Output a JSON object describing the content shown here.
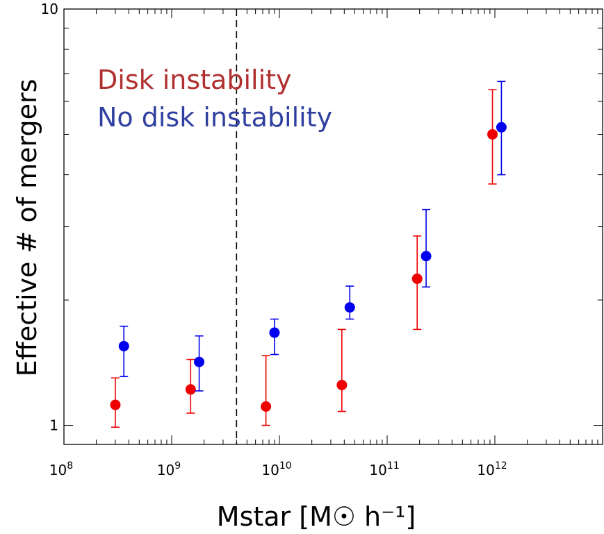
{
  "chart_data": {
    "type": "scatter",
    "xscale": "log",
    "yscale": "log",
    "xlim": [
      100000000,
      10000000000000
    ],
    "ylim": [
      0.9,
      10
    ],
    "xlabel": "Mstar [M☉ h⁻¹]",
    "ylabel": "Effective # of mergers",
    "x_ticks": [
      "10^8",
      "10^9",
      "10^10",
      "10^11",
      "10^12"
    ],
    "y_ticks": [
      "1",
      "10"
    ],
    "vline_x": 4000000000,
    "legend_position": "top-left",
    "series": [
      {
        "name": "Disk instability",
        "color": "#ee0000",
        "text_color": "#b03030",
        "points": [
          {
            "x": 300000000,
            "y": 1.12,
            "ylo": 0.99,
            "yhi": 1.3
          },
          {
            "x": 1500000000,
            "y": 1.22,
            "ylo": 1.07,
            "yhi": 1.44
          },
          {
            "x": 7500000000,
            "y": 1.11,
            "ylo": 1.0,
            "yhi": 1.47
          },
          {
            "x": 38000000000,
            "y": 1.25,
            "ylo": 1.08,
            "yhi": 1.7
          },
          {
            "x": 190000000000,
            "y": 2.25,
            "ylo": 1.7,
            "yhi": 2.85
          },
          {
            "x": 950000000000,
            "y": 5.0,
            "ylo": 3.8,
            "yhi": 6.4
          }
        ]
      },
      {
        "name": "No disk instability",
        "color": "#0000ee",
        "text_color": "#3040a0",
        "points": [
          {
            "x": 360000000,
            "y": 1.55,
            "ylo": 1.31,
            "yhi": 1.73
          },
          {
            "x": 1800000000,
            "y": 1.42,
            "ylo": 1.21,
            "yhi": 1.64
          },
          {
            "x": 9000000000,
            "y": 1.67,
            "ylo": 1.48,
            "yhi": 1.8
          },
          {
            "x": 45000000000,
            "y": 1.92,
            "ylo": 1.8,
            "yhi": 2.16
          },
          {
            "x": 230000000000,
            "y": 2.55,
            "ylo": 2.15,
            "yhi": 3.3
          },
          {
            "x": 1150000000000,
            "y": 5.2,
            "ylo": 4.0,
            "yhi": 6.7
          }
        ]
      }
    ]
  }
}
